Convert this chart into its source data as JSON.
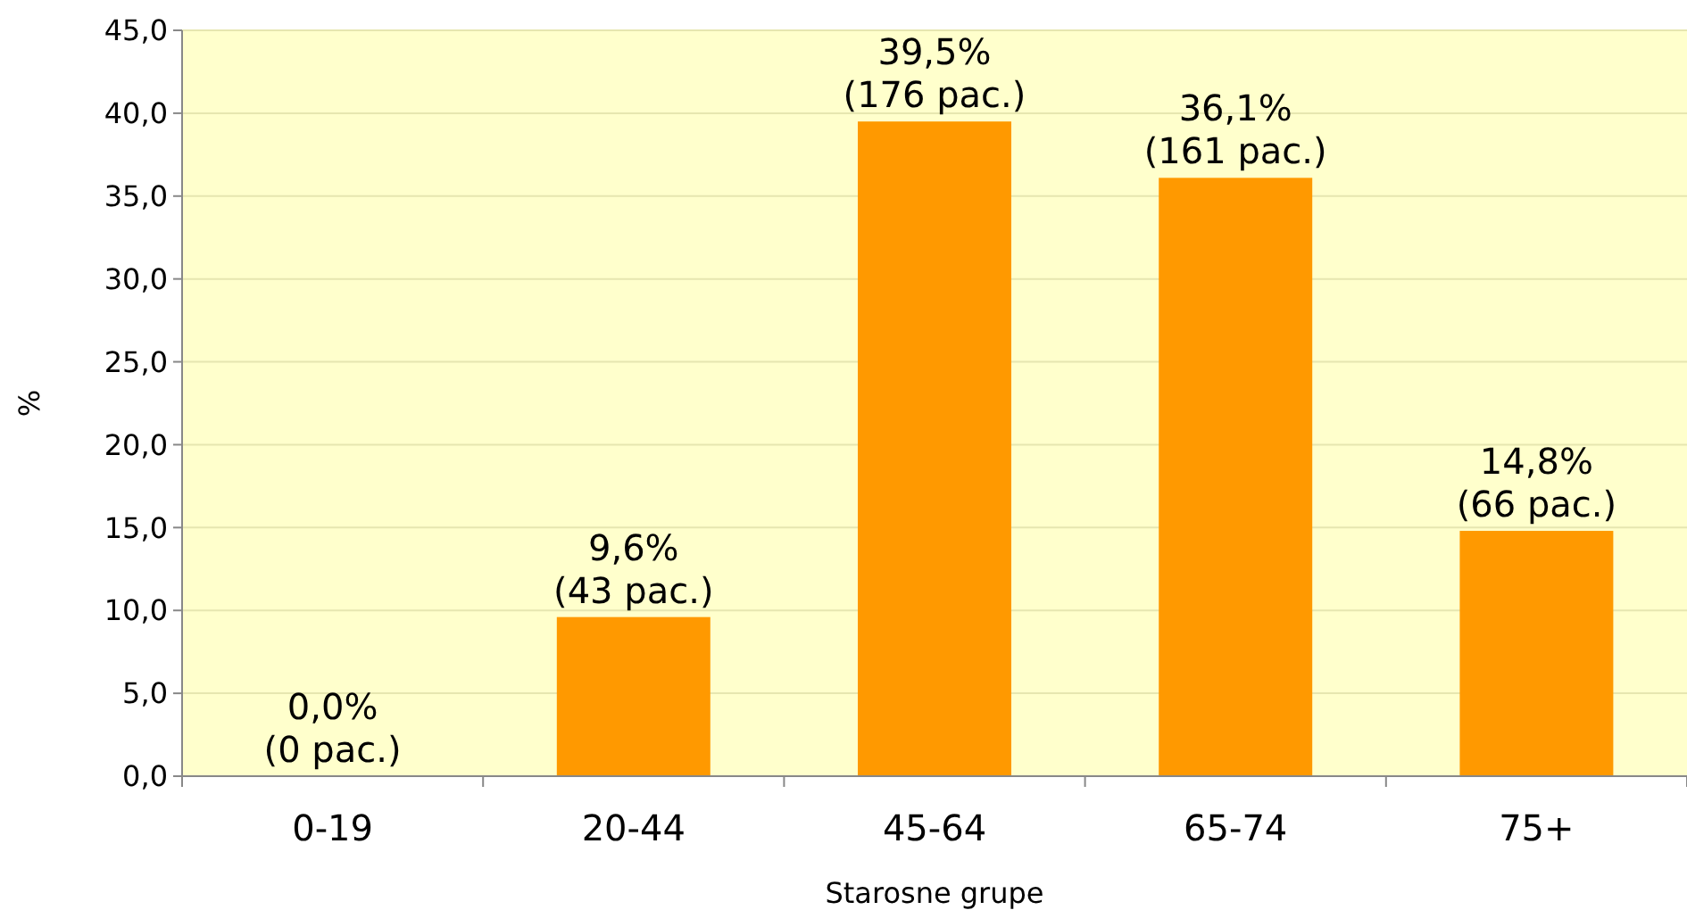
{
  "chart_data": {
    "type": "bar",
    "xlabel": "Starosne grupe",
    "ylabel": "%",
    "categories": [
      "0-19",
      "20-44",
      "45-64",
      "65-74",
      "75+"
    ],
    "values": [
      0,
      9.6,
      39.5,
      36.1,
      14.8
    ],
    "value_labels": [
      "0,0%\n(0 pac.)",
      "9,6%\n(43 pac.)",
      "39,5%\n(176 pac.)",
      "36,1%\n(161 pac.)",
      "14,8%\n(66 pac.)"
    ],
    "color": "#ff9900",
    "ylim": [
      0,
      45
    ],
    "yticks": [
      {
        "value": 0,
        "label": "0,0"
      },
      {
        "value": 5,
        "label": "5,0"
      },
      {
        "value": 10,
        "label": "10,0"
      },
      {
        "value": 15,
        "label": "15,0"
      },
      {
        "value": 20,
        "label": "20,0"
      },
      {
        "value": 25,
        "label": "25,0"
      },
      {
        "value": 30,
        "label": "30,0"
      },
      {
        "value": 35,
        "label": "35,0"
      },
      {
        "value": 40,
        "label": "40,0"
      },
      {
        "value": 45,
        "label": "45,0"
      }
    ],
    "grid": "y"
  }
}
